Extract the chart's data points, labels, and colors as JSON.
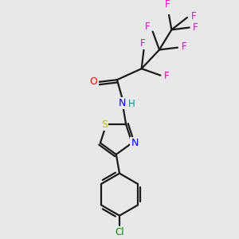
{
  "background_color": "#e8e8e8",
  "bond_color": "#1a1a1a",
  "atom_colors": {
    "F": "#ff00cc",
    "O": "#ff0000",
    "N": "#0000ee",
    "H": "#009090",
    "S": "#bbbb00",
    "Cl": "#008800",
    "C": "#1a1a1a"
  },
  "figsize": [
    3.0,
    3.0
  ],
  "dpi": 100
}
